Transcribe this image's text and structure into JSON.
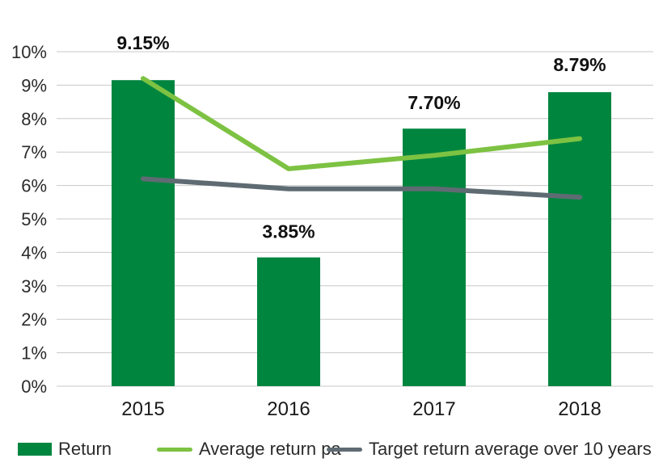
{
  "chart_data": {
    "type": "bar",
    "categories": [
      "2015",
      "2016",
      "2017",
      "2018"
    ],
    "ylim": [
      0,
      10
    ],
    "y_ticks": [
      "0%",
      "1%",
      "2%",
      "3%",
      "4%",
      "5%",
      "6%",
      "7%",
      "8%",
      "9%",
      "10%"
    ],
    "grid": true,
    "legend_position": "bottom",
    "series": [
      {
        "name": "Return",
        "kind": "bar",
        "color": "#00853f",
        "values": [
          9.15,
          3.85,
          7.7,
          8.79
        ],
        "labels": [
          "9.15%",
          "3.85%",
          "7.70%",
          "8.79%"
        ]
      },
      {
        "name": "Average return pa",
        "kind": "line",
        "color": "#7dc242",
        "values": [
          9.2,
          6.5,
          6.9,
          7.4
        ]
      },
      {
        "name": "Target return average over 10 years",
        "kind": "line",
        "color": "#5f6b73",
        "values": [
          6.2,
          5.9,
          5.9,
          5.65
        ]
      }
    ]
  }
}
